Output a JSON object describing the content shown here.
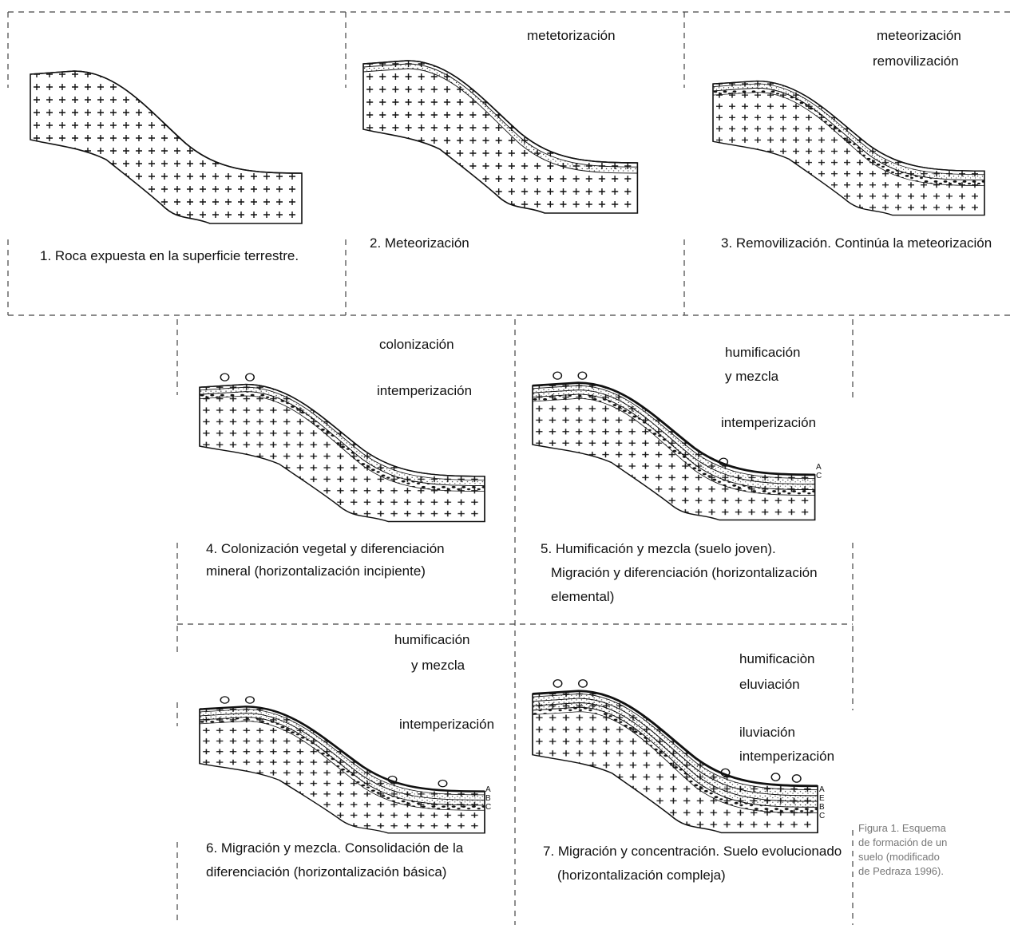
{
  "panels": [
    {
      "labels": [],
      "horizons": [],
      "caption": [
        "1. Roca expuesta en la superficie terrestre."
      ]
    },
    {
      "labels": [
        "metetorización"
      ],
      "horizons": [],
      "caption": [
        "2. Meteorización"
      ]
    },
    {
      "labels": [
        "meteorización",
        "removilización"
      ],
      "horizons": [],
      "caption": [
        "3. Removilización. Continúa la meteorización"
      ]
    },
    {
      "labels": [
        "colonización",
        "intemperización"
      ],
      "horizons": [],
      "caption": [
        "4. Colonización vegetal y diferenciación",
        "mineral (horizontalización incipiente)"
      ]
    },
    {
      "labels": [
        "humificación",
        "y mezcla",
        "intemperización"
      ],
      "horizons": [
        "A",
        "C"
      ],
      "caption": [
        "5. Humificación y mezcla (suelo joven).",
        "Migración y diferenciación (horizontalización",
        "elemental)"
      ]
    },
    {
      "labels": [
        "humificación",
        "y mezcla",
        "intemperización"
      ],
      "horizons": [
        "A",
        "B",
        "C"
      ],
      "caption": [
        "6. Migración y mezcla. Consolidación de la",
        "diferenciación (horizontalización básica)"
      ]
    },
    {
      "labels": [
        "humificaciòn",
        "eluviación",
        "iluviación",
        "intemperización"
      ],
      "horizons": [
        "A",
        "E",
        "B",
        "C"
      ],
      "caption": [
        "7. Migración y concentración. Suelo evolucionado",
        "(horizontalización compleja)"
      ]
    }
  ],
  "figure_caption": [
    "Figura 1. Esquema",
    "de formación de un",
    "suelo (modificado",
    "de Pedraza 1996)."
  ]
}
